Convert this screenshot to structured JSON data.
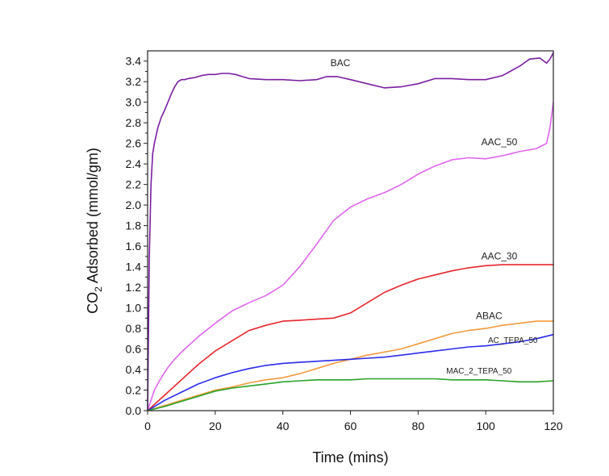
{
  "chart_data": {
    "type": "line",
    "xlabel": "Time (mins)",
    "ylabel_main": "CO",
    "ylabel_sub": "2",
    "ylabel_rest": " Adsorbed (mmol/gm)",
    "xlim": [
      0,
      120
    ],
    "ylim": [
      0,
      3.5
    ],
    "xticks": [
      0,
      20,
      40,
      60,
      80,
      100,
      120
    ],
    "yticks": [
      0.0,
      0.2,
      0.4,
      0.6,
      0.8,
      1.0,
      1.2,
      1.4,
      1.6,
      1.8,
      2.0,
      2.2,
      2.4,
      2.6,
      2.8,
      3.0,
      3.2,
      3.4
    ],
    "grid": false,
    "series": [
      {
        "name": "BAC",
        "color": "#7a1fa2",
        "x": [
          0,
          0.5,
          1,
          1.5,
          2,
          3,
          4,
          5,
          6,
          7,
          8,
          9,
          10,
          11,
          12,
          14,
          16,
          18,
          20,
          22,
          24,
          26,
          28,
          30,
          35,
          40,
          45,
          50,
          53,
          56,
          60,
          65,
          70,
          75,
          80,
          85,
          90,
          95,
          100,
          105,
          110,
          113,
          116,
          118,
          119,
          120
        ],
        "y": [
          0,
          1.5,
          2.2,
          2.5,
          2.6,
          2.75,
          2.85,
          2.92,
          3.0,
          3.08,
          3.15,
          3.2,
          3.22,
          3.22,
          3.23,
          3.24,
          3.26,
          3.27,
          3.27,
          3.28,
          3.28,
          3.27,
          3.25,
          3.23,
          3.22,
          3.22,
          3.21,
          3.22,
          3.25,
          3.25,
          3.22,
          3.18,
          3.14,
          3.15,
          3.18,
          3.23,
          3.23,
          3.22,
          3.22,
          3.26,
          3.35,
          3.42,
          3.43,
          3.38,
          3.42,
          3.48
        ]
      },
      {
        "name": "AAC_50",
        "color": "#e066ee",
        "x": [
          0,
          2,
          4,
          6,
          8,
          10,
          15,
          20,
          25,
          30,
          35,
          40,
          45,
          50,
          55,
          60,
          65,
          70,
          75,
          80,
          85,
          90,
          95,
          100,
          105,
          110,
          115,
          118,
          119,
          120
        ],
        "y": [
          0,
          0.2,
          0.32,
          0.42,
          0.5,
          0.57,
          0.72,
          0.85,
          0.97,
          1.05,
          1.12,
          1.22,
          1.4,
          1.62,
          1.85,
          1.98,
          2.06,
          2.12,
          2.2,
          2.3,
          2.38,
          2.44,
          2.46,
          2.45,
          2.48,
          2.52,
          2.55,
          2.6,
          2.75,
          3.0
        ]
      },
      {
        "name": "AAC_30",
        "color": "#e8252b",
        "x": [
          0,
          5,
          10,
          15,
          20,
          25,
          30,
          35,
          40,
          45,
          50,
          55,
          60,
          65,
          70,
          75,
          80,
          85,
          90,
          95,
          100,
          105,
          110,
          115,
          120
        ],
        "y": [
          0,
          0.15,
          0.3,
          0.45,
          0.58,
          0.68,
          0.78,
          0.83,
          0.87,
          0.88,
          0.89,
          0.9,
          0.95,
          1.05,
          1.15,
          1.22,
          1.28,
          1.32,
          1.36,
          1.39,
          1.41,
          1.42,
          1.42,
          1.42,
          1.42
        ]
      },
      {
        "name": "ABAC",
        "color": "#f39a3c",
        "x": [
          0,
          5,
          10,
          15,
          20,
          25,
          30,
          35,
          40,
          45,
          50,
          55,
          60,
          65,
          70,
          75,
          80,
          85,
          90,
          95,
          100,
          105,
          110,
          115,
          120
        ],
        "y": [
          0,
          0.05,
          0.1,
          0.15,
          0.2,
          0.23,
          0.27,
          0.3,
          0.32,
          0.36,
          0.41,
          0.46,
          0.5,
          0.54,
          0.57,
          0.6,
          0.65,
          0.7,
          0.75,
          0.78,
          0.8,
          0.83,
          0.85,
          0.87,
          0.87
        ]
      },
      {
        "name": "AC_TEPA_50",
        "color": "#2b2bee",
        "x": [
          0,
          5,
          10,
          15,
          20,
          25,
          30,
          35,
          40,
          45,
          50,
          55,
          60,
          65,
          70,
          75,
          80,
          85,
          90,
          95,
          100,
          105,
          110,
          115,
          120
        ],
        "y": [
          0,
          0.1,
          0.18,
          0.26,
          0.32,
          0.37,
          0.41,
          0.44,
          0.46,
          0.47,
          0.48,
          0.49,
          0.5,
          0.51,
          0.52,
          0.54,
          0.56,
          0.58,
          0.6,
          0.62,
          0.63,
          0.65,
          0.67,
          0.7,
          0.74
        ]
      },
      {
        "name": "MAC_2_TEPA_50",
        "color": "#29a329",
        "x": [
          0,
          5,
          10,
          15,
          20,
          25,
          30,
          35,
          40,
          45,
          50,
          55,
          60,
          65,
          70,
          75,
          80,
          85,
          90,
          95,
          100,
          105,
          110,
          115,
          120
        ],
        "y": [
          0,
          0.04,
          0.09,
          0.14,
          0.19,
          0.22,
          0.24,
          0.26,
          0.28,
          0.29,
          0.3,
          0.3,
          0.3,
          0.31,
          0.31,
          0.31,
          0.31,
          0.31,
          0.3,
          0.3,
          0.3,
          0.29,
          0.28,
          0.28,
          0.29
        ]
      }
    ],
    "annotations": [
      {
        "text": "BAC",
        "x": 57,
        "y": 3.35,
        "size": "normal"
      },
      {
        "text": "AAC_50",
        "x": 104,
        "y": 2.58,
        "size": "normal"
      },
      {
        "text": "AAC_30",
        "x": 104,
        "y": 1.47,
        "size": "normal"
      },
      {
        "text": "ABAC",
        "x": 101,
        "y": 0.89,
        "size": "normal"
      },
      {
        "text": "AC_TEPA_50",
        "x": 108,
        "y": 0.66,
        "size": "small"
      },
      {
        "text": "MAC_2_TEPA_50",
        "x": 98,
        "y": 0.36,
        "size": "small"
      }
    ]
  }
}
